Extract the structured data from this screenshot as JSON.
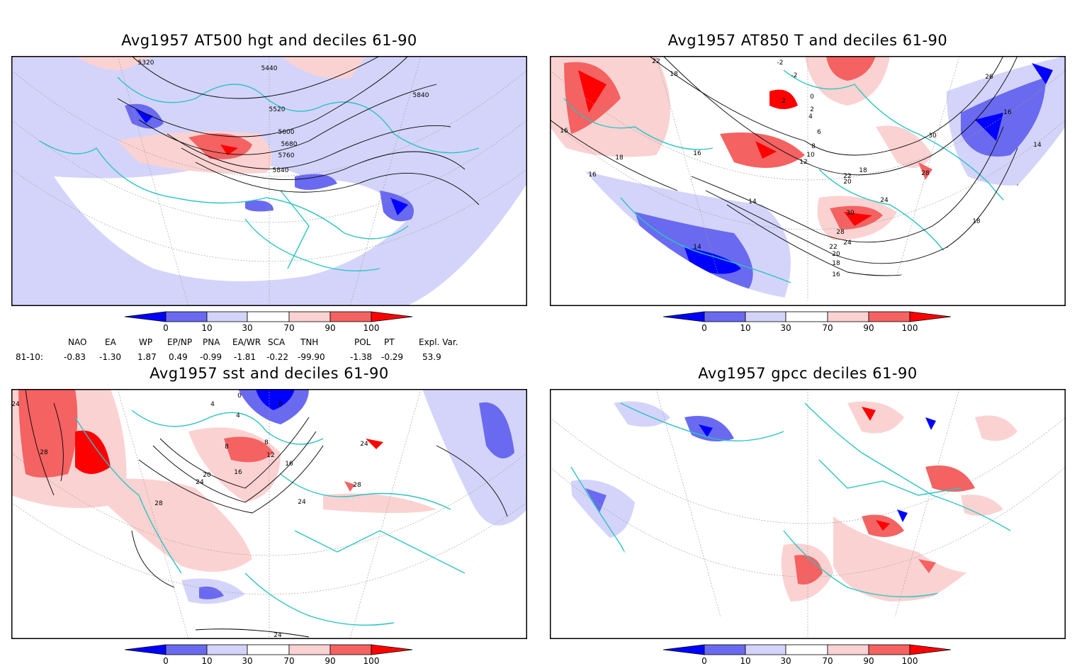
{
  "panels": [
    {
      "title": "Avg1957 AT500 hgt and deciles 61-90",
      "contour_labels": [
        "5320",
        "5440",
        "5520",
        "5600",
        "5680",
        "5760",
        "5840",
        "5840"
      ]
    },
    {
      "title": "Avg1957 AT850 T and deciles 61-90",
      "contour_labels": [
        "22",
        "18",
        "-2",
        "-2",
        "2",
        "0",
        "2",
        "4",
        "26",
        "16",
        "16",
        "6",
        "8",
        "10",
        "12",
        "30",
        "16",
        "18",
        "14",
        "16",
        "18",
        "22",
        "20",
        "28",
        "24",
        "14",
        "14",
        "16",
        "30",
        "28",
        "24",
        "22",
        "20",
        "18",
        "16",
        "18",
        "14",
        "18",
        "14"
      ]
    },
    {
      "title": "Avg1957 sst and deciles 61-90",
      "contour_labels": [
        "24",
        "28",
        "0",
        "4",
        "0",
        "4",
        "8",
        "8",
        "12",
        "16",
        "16",
        "20",
        "24",
        "28",
        "24",
        "24",
        "28",
        "24"
      ]
    },
    {
      "title": "Avg1957 gpcc deciles 61-90",
      "contour_labels": []
    }
  ],
  "colorbar": {
    "ticks": [
      "0",
      "10",
      "30",
      "70",
      "90",
      "100"
    ],
    "colors": [
      "#0000ff",
      "#6a6af0",
      "#d4d4fa",
      "#ffffff",
      "#fbd2d2",
      "#f46262",
      "#ff0000"
    ]
  },
  "indices": {
    "headers": [
      "NAO",
      "EA",
      "WP",
      "EP/NP",
      "PNA",
      "EA/WR",
      "SCA",
      "TNH",
      "POL",
      "PT",
      "Expl. Var."
    ],
    "row_label": "81-10:",
    "values": [
      "-0.83",
      "-1.30",
      "1.87",
      "0.49",
      "-0.99",
      "-1.81",
      "-0.22",
      "-99.90",
      "-1.38",
      "-0.29",
      "53.9"
    ]
  }
}
